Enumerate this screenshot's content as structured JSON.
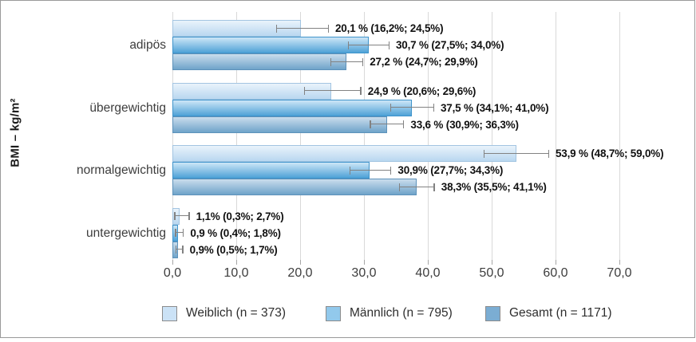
{
  "frame": {
    "border_color": "#9a9a9a",
    "background": "#ffffff"
  },
  "chart_data": {
    "type": "bar",
    "orientation": "horizontal",
    "title": "",
    "xlabel": "",
    "ylabel": "BMI – kg/m²",
    "categories": [
      "adipös",
      "übergewichtig",
      "normalgewichtig",
      "untergewichtig"
    ],
    "x_tick_values": [
      0,
      10,
      20,
      30,
      40,
      50,
      60,
      70
    ],
    "x_tick_labels": [
      "0,0",
      "10,0",
      "20,0",
      "30,0",
      "40,0",
      "50,0",
      "60,0",
      "70,0"
    ],
    "xlim": [
      0,
      72.5
    ],
    "grid": true,
    "gridline_color": "#d9d9d9",
    "error_bar_color": "#828282",
    "legend_position": "bottom",
    "series": [
      {
        "name": "Weiblich (n = 373)",
        "swatch_color": "#cbe2f6",
        "gradient_top": "#e9f3fb",
        "gradient_bottom": "#b9d7f0",
        "border_color": "#a2c4e1",
        "values": [
          20.1,
          24.9,
          53.9,
          1.1
        ],
        "ci_low": [
          16.2,
          20.6,
          48.7,
          0.3
        ],
        "ci_high": [
          24.5,
          29.6,
          59.0,
          2.7
        ],
        "point_labels": [
          "20,1 % (16,2%; 24,5%)",
          "24,9 % (20,6%; 29,6%)",
          "53,9 % (48,7%; 59,0%)",
          "1,1% (0,3%; 2,7%)"
        ]
      },
      {
        "name": "Männlich (n = 795)",
        "swatch_color": "#92c9ec",
        "gradient_top": "#cde6f7",
        "gradient_bottom": "#4fa2d7",
        "border_color": "#3f94cb",
        "values": [
          30.7,
          37.5,
          30.9,
          0.9
        ],
        "ci_low": [
          27.5,
          34.1,
          27.7,
          0.4
        ],
        "ci_high": [
          34.0,
          41.0,
          34.3,
          1.8
        ],
        "point_labels": [
          "30,7 % (27,5%; 34,0%)",
          "37,5 % (34,1%; 41,0%)",
          "30,9% (27,7%; 34,3%)",
          "0,9 % (0,4%; 1,8%)"
        ]
      },
      {
        "name": "Gesamt (n = 1171)",
        "swatch_color": "#7badd3",
        "gradient_top": "#cadded",
        "gradient_bottom": "#6fa3c9",
        "border_color": "#5e92ba",
        "values": [
          27.2,
          33.6,
          38.3,
          0.9
        ],
        "ci_low": [
          24.7,
          30.9,
          35.5,
          0.5
        ],
        "ci_high": [
          29.9,
          36.3,
          41.1,
          1.7
        ],
        "point_labels": [
          "27,2 % (24,7%; 29,9%)",
          "33,6 % (30,9%; 36,3%)",
          "38,3% (35,5%; 41,1%)",
          "0,9% (0,5%; 1,7%)"
        ]
      }
    ]
  }
}
